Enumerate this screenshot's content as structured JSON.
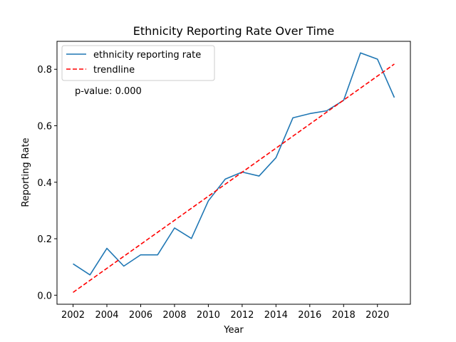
{
  "chart_data": {
    "type": "line",
    "title": "Ethnicity Reporting Rate Over Time",
    "xlabel": "Year",
    "ylabel": "Reporting Rate",
    "xlim": [
      2001.05,
      2021.95
    ],
    "ylim": [
      -0.032,
      0.899
    ],
    "xticks": [
      2002,
      2004,
      2006,
      2008,
      2010,
      2012,
      2014,
      2016,
      2018,
      2020
    ],
    "xtick_labels": [
      "2002",
      "2004",
      "2006",
      "2008",
      "2010",
      "2012",
      "2014",
      "2016",
      "2018",
      "2020"
    ],
    "yticks": [
      0.0,
      0.2,
      0.4,
      0.6,
      0.8
    ],
    "ytick_labels": [
      "0.0",
      "0.2",
      "0.4",
      "0.6",
      "0.8"
    ],
    "x": [
      2002,
      2003,
      2004,
      2005,
      2006,
      2007,
      2008,
      2009,
      2010,
      2011,
      2012,
      2013,
      2014,
      2015,
      2016,
      2017,
      2018,
      2019,
      2020,
      2021
    ],
    "series": [
      {
        "name": "ethnicity reporting rate",
        "color": "#1f77b4",
        "style": "solid",
        "values": [
          0.111,
          0.072,
          0.166,
          0.103,
          0.143,
          0.143,
          0.238,
          0.201,
          0.334,
          0.411,
          0.436,
          0.422,
          0.487,
          0.628,
          0.643,
          0.653,
          0.69,
          0.858,
          0.836,
          0.7
        ]
      },
      {
        "name": "trendline",
        "color": "#ff0000",
        "style": "dashed",
        "values": [
          0.01,
          0.8185
        ],
        "x": [
          2002,
          2021
        ]
      }
    ],
    "legend_position": "upper-left",
    "annotation": "p-value: 0.000",
    "grid": false
  }
}
